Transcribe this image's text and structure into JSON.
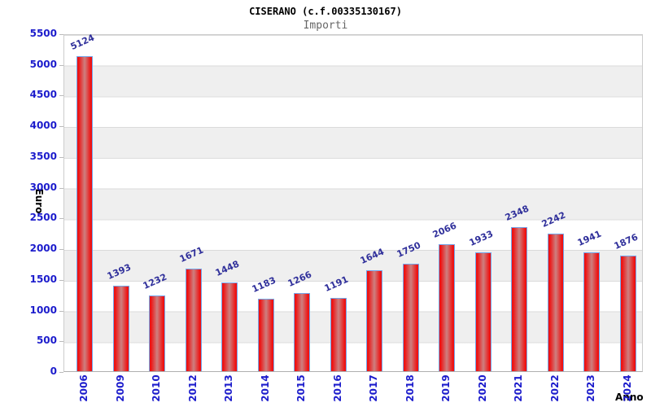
{
  "chart_data": {
    "type": "bar",
    "title": "CISERANO (c.f.00335130167)",
    "subtitle": "Importi",
    "xlabel": "Anno",
    "ylabel": "Euro",
    "categories": [
      "2006",
      "2009",
      "2010",
      "2012",
      "2013",
      "2014",
      "2015",
      "2016",
      "2017",
      "2018",
      "2019",
      "2020",
      "2021",
      "2022",
      "2023",
      "2024"
    ],
    "values": [
      5124,
      1393,
      1232,
      1671,
      1448,
      1183,
      1266,
      1191,
      1644,
      1750,
      2066,
      1933,
      2348,
      2242,
      1941,
      1876
    ],
    "ylim": [
      0,
      5500
    ],
    "ytick_step": 500,
    "grid": "horizontal alternating bands with gridlines every 500",
    "legend": "none",
    "colors": {
      "bar_edge_fill": "#ee1212",
      "bar_center_fill": "#cd8080",
      "bar_border": "#74a6ea",
      "tick_label": "#1c1ccc",
      "value_label": "#30309b",
      "band_gray": "#efefef",
      "gridline": "#d8d8d8",
      "title": "#000000",
      "subtitle": "#666666"
    }
  }
}
